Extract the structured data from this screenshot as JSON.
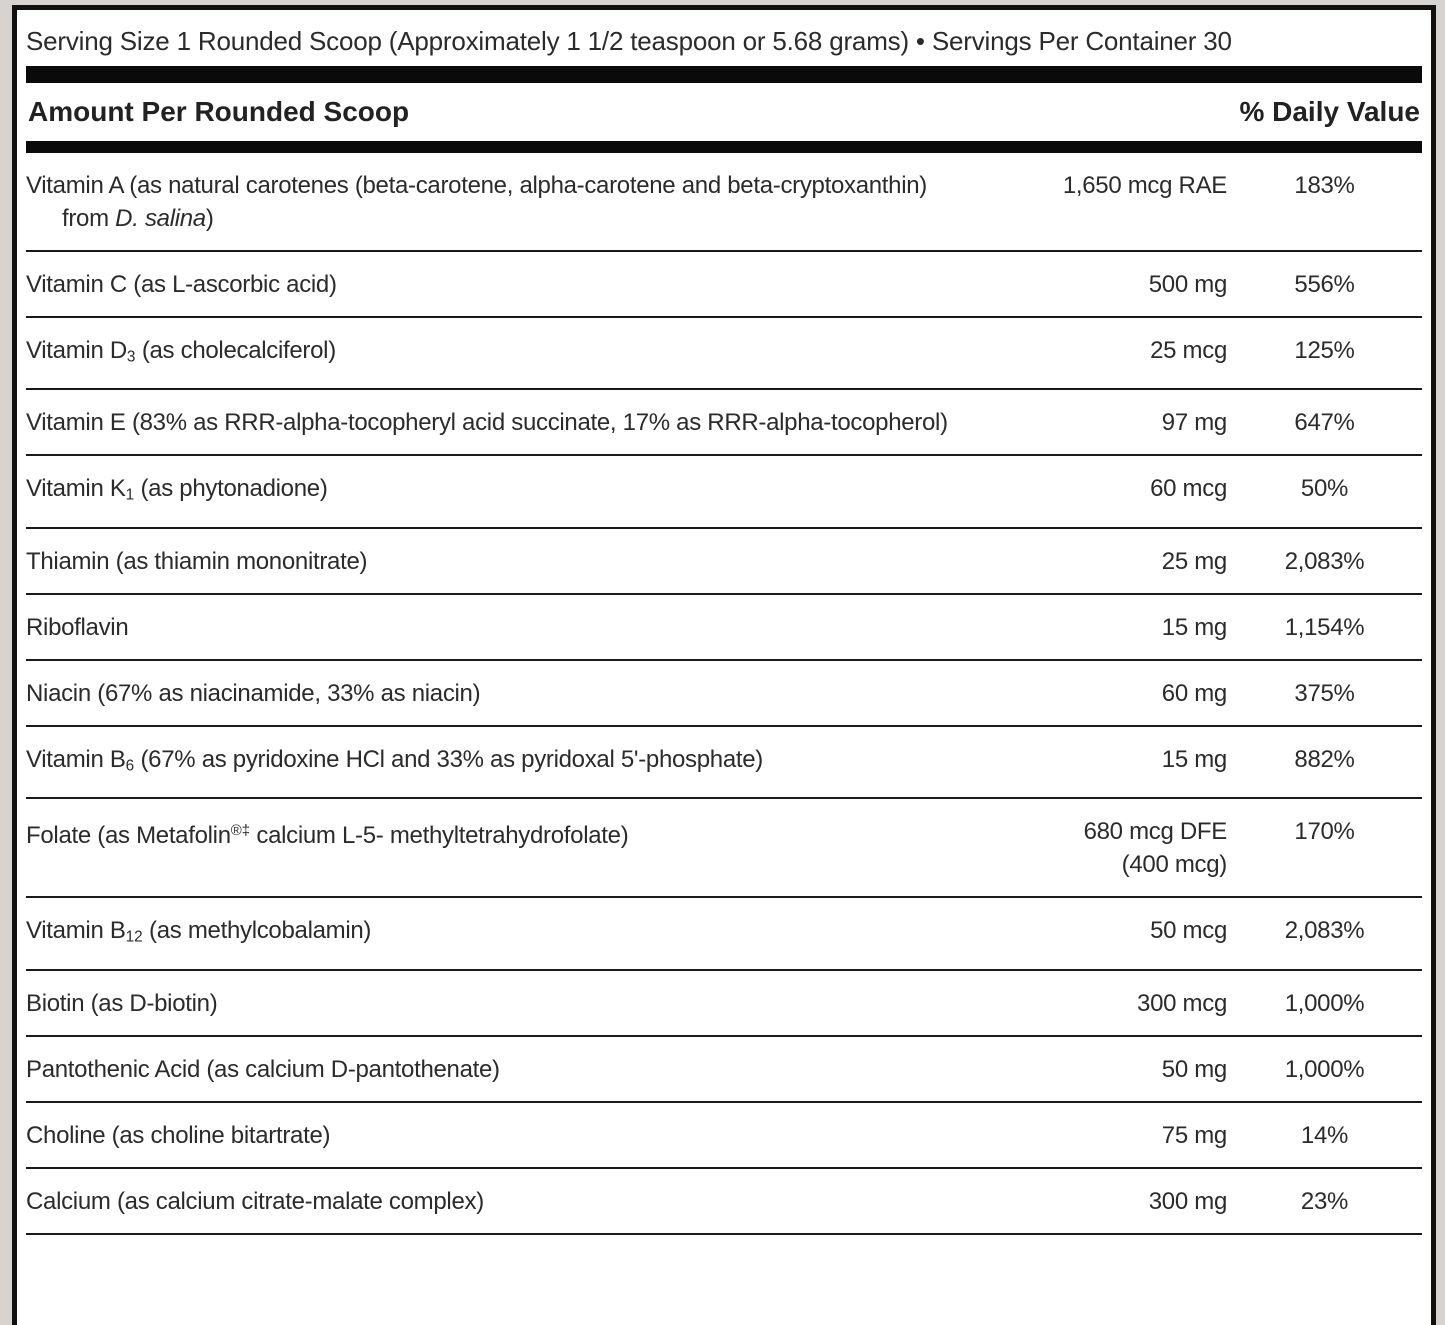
{
  "page": {
    "background_color": "#d6d3d1",
    "label_border_color": "#111111",
    "separator_color": "#1a1a1a"
  },
  "serving_line": "Serving Size 1 Rounded Scoop (Approximately 1 1/2 teaspoon or 5.68 grams) • Servings Per Container 30",
  "header": {
    "amount_label": "Amount Per Rounded Scoop",
    "dv_label": "% Daily Value"
  },
  "rows": [
    {
      "name_lines": [
        [
          {
            "t": "Vitamin A (as natural carotenes (beta-carotene, alpha-carotene and beta-cryptoxanthin)"
          }
        ],
        [
          {
            "t": "from "
          },
          {
            "t": "D. salina",
            "s": "i"
          },
          {
            "t": ")"
          }
        ]
      ],
      "amount_lines": [
        "1,650 mcg RAE"
      ],
      "dv": "183%"
    },
    {
      "name_lines": [
        [
          {
            "t": "Vitamin C (as L-ascorbic acid)"
          }
        ]
      ],
      "amount_lines": [
        "500 mg"
      ],
      "dv": "556%"
    },
    {
      "name_lines": [
        [
          {
            "t": "Vitamin D"
          },
          {
            "t": "3",
            "s": "sub"
          },
          {
            "t": " (as cholecalciferol)"
          }
        ]
      ],
      "amount_lines": [
        "25 mcg"
      ],
      "dv": "125%"
    },
    {
      "name_lines": [
        [
          {
            "t": "Vitamin E (83% as RRR-alpha-tocopheryl acid succinate, 17% as RRR-alpha-tocopherol)"
          }
        ]
      ],
      "amount_lines": [
        "97 mg"
      ],
      "dv": "647%"
    },
    {
      "name_lines": [
        [
          {
            "t": "Vitamin K"
          },
          {
            "t": "1",
            "s": "sub"
          },
          {
            "t": " (as phytonadione)"
          }
        ]
      ],
      "amount_lines": [
        "60 mcg"
      ],
      "dv": "50%"
    },
    {
      "name_lines": [
        [
          {
            "t": "Thiamin (as thiamin mononitrate)"
          }
        ]
      ],
      "amount_lines": [
        "25 mg"
      ],
      "dv": "2,083%"
    },
    {
      "name_lines": [
        [
          {
            "t": "Riboflavin"
          }
        ]
      ],
      "amount_lines": [
        "15 mg"
      ],
      "dv": "1,154%"
    },
    {
      "name_lines": [
        [
          {
            "t": "Niacin (67% as niacinamide, 33% as niacin)"
          }
        ]
      ],
      "amount_lines": [
        "60 mg"
      ],
      "dv": "375%"
    },
    {
      "name_lines": [
        [
          {
            "t": "Vitamin B"
          },
          {
            "t": "6",
            "s": "sub"
          },
          {
            "t": " (67% as pyridoxine HCl and 33% as pyridoxal 5'-phosphate)"
          }
        ]
      ],
      "amount_lines": [
        "15 mg"
      ],
      "dv": "882%"
    },
    {
      "name_lines": [
        [
          {
            "t": "Folate (as Metafolin"
          },
          {
            "t": "®‡",
            "s": "sup"
          },
          {
            "t": " calcium L-5- methyltetrahydrofolate)"
          }
        ]
      ],
      "amount_lines": [
        "680 mcg DFE",
        "(400 mcg)"
      ],
      "dv": "170%"
    },
    {
      "name_lines": [
        [
          {
            "t": "Vitamin B"
          },
          {
            "t": "12",
            "s": "sub"
          },
          {
            "t": " (as methylcobalamin)"
          }
        ]
      ],
      "amount_lines": [
        "50 mcg"
      ],
      "dv": "2,083%"
    },
    {
      "name_lines": [
        [
          {
            "t": "Biotin (as D-biotin)"
          }
        ]
      ],
      "amount_lines": [
        "300 mcg"
      ],
      "dv": "1,000%"
    },
    {
      "name_lines": [
        [
          {
            "t": "Pantothenic Acid (as calcium D-pantothenate)"
          }
        ]
      ],
      "amount_lines": [
        "50 mg"
      ],
      "dv": "1,000%"
    },
    {
      "name_lines": [
        [
          {
            "t": "Choline (as choline bitartrate)"
          }
        ]
      ],
      "amount_lines": [
        "75 mg"
      ],
      "dv": "14%"
    },
    {
      "name_lines": [
        [
          {
            "t": "Calcium (as calcium citrate-malate complex)"
          }
        ]
      ],
      "amount_lines": [
        "300 mg"
      ],
      "dv": "23%"
    }
  ]
}
